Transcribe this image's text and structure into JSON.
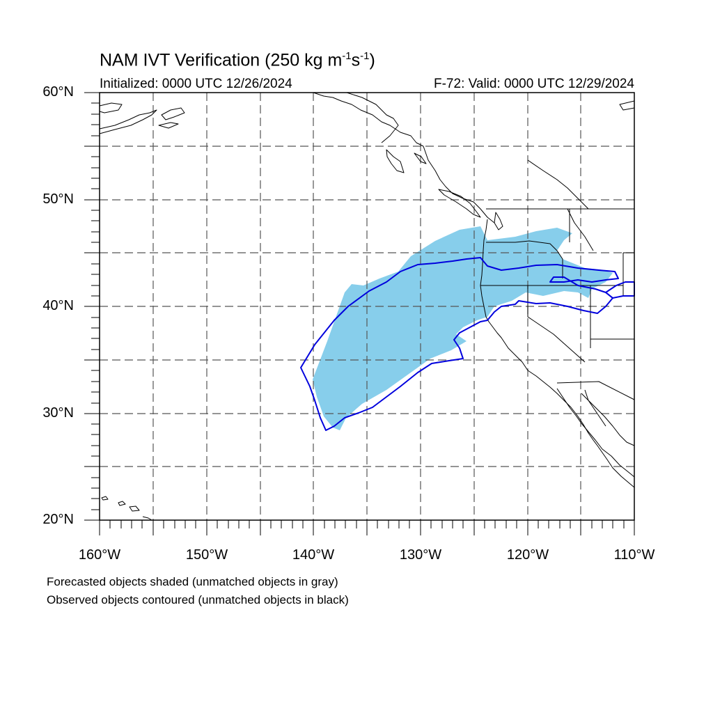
{
  "header": {
    "title": "NAM IVT Verification (250 kg m",
    "title_sup1": "-1",
    "title_mid": "s",
    "title_sup2": "-1",
    "title_end": ")",
    "initialized": "Initialized: 0000 UTC 12/26/2024",
    "valid": "F-72: Valid: 0000 UTC 12/29/2024"
  },
  "axes": {
    "lat_labels": [
      "60°N",
      "50°N",
      "40°N",
      "30°N",
      "20°N"
    ],
    "lon_labels": [
      "160°W",
      "150°W",
      "140°W",
      "130°W",
      "120°W",
      "110°W"
    ],
    "lon_range": [
      -160,
      -110
    ],
    "lat_range": [
      20,
      60
    ],
    "gridlines": "dashed, every 5 degrees"
  },
  "legend": {
    "line1": "Forecasted objects shaded (unmatched objects in gray)",
    "line2": "Observed objects contoured (unmatched objects in black)"
  },
  "colors": {
    "forecast_fill": "#87ceeb",
    "observed_contour": "#0000dd",
    "coastline": "#000000",
    "grid": "#555555"
  }
}
